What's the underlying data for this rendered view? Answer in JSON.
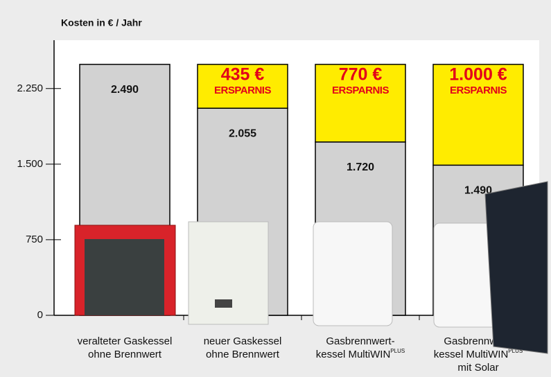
{
  "chart_data": {
    "type": "stacked_bar",
    "title": "Kosten in € / Jahr",
    "categories": [
      {
        "lines": [
          "veralteter Gaskessel",
          "ohne Brennwert"
        ]
      },
      {
        "lines": [
          "neuer Gaskessel",
          "ohne Brennwert"
        ]
      },
      {
        "lines": [
          "Gasbrennwert-",
          "kessel MultiWIN"
        ],
        "sup": "PLUS"
      },
      {
        "lines": [
          "Gasbrennwert-",
          "kessel MultiWIN",
          "mit Solar"
        ],
        "sup": "PLUS"
      }
    ],
    "series": [
      {
        "color": "#d2d2d2",
        "values": [
          2490,
          2055,
          1720,
          1490
        ],
        "value_labels": [
          "2.490",
          "2.055",
          "1.720",
          "1.490"
        ]
      },
      {
        "name": "ERSPARNIS",
        "color": "#ffec00",
        "values": [
          null,
          435,
          770,
          1000
        ],
        "value_labels": [
          null,
          "435 €",
          "770 €",
          "1.000 €"
        ]
      }
    ],
    "ylim": [
      0,
      2730
    ],
    "yticks": [
      0,
      750,
      {
        "value": 1500,
        "label": "1.500"
      },
      {
        "value": 2250,
        "label": "2.250"
      }
    ]
  }
}
